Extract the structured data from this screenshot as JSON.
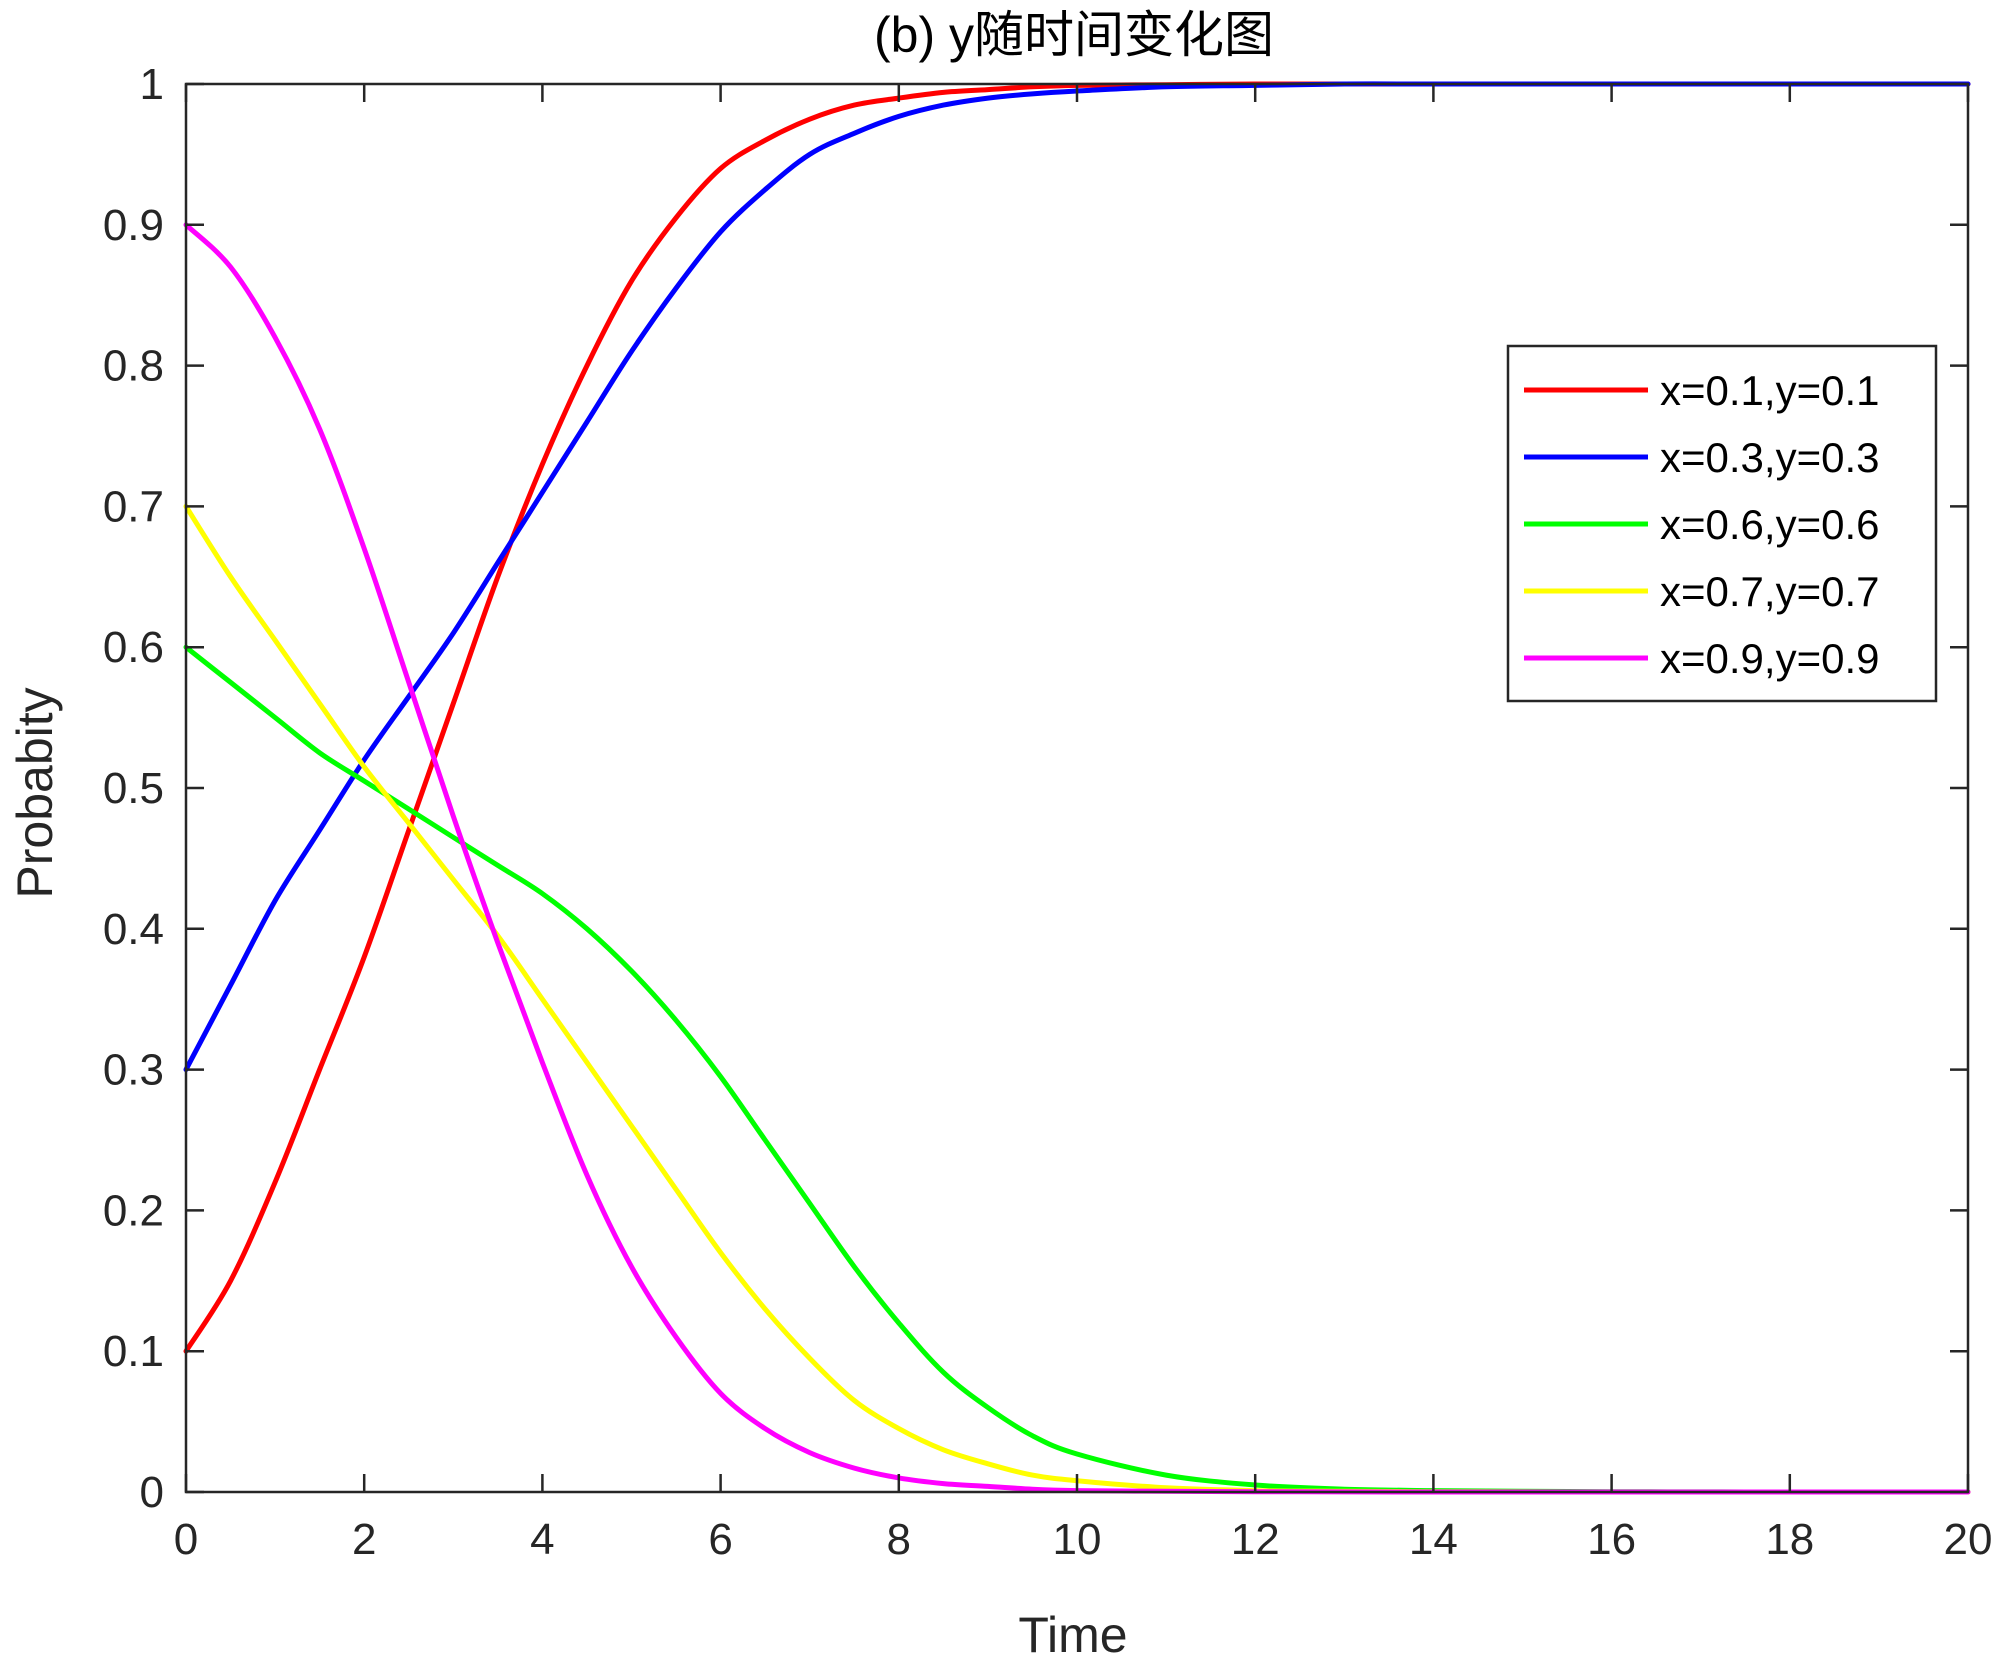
{
  "chart_data": {
    "type": "line",
    "title": "(b) y随时间变化图",
    "xlabel": "Time",
    "ylabel": "Probabity",
    "xlim": [
      0,
      20
    ],
    "ylim": [
      0,
      1
    ],
    "xticks": [
      0,
      2,
      4,
      6,
      8,
      10,
      12,
      14,
      16,
      18,
      20
    ],
    "xtick_labels": [
      "0",
      "2",
      "4",
      "6",
      "8",
      "10",
      "12",
      "14",
      "16",
      "18",
      "20"
    ],
    "yticks": [
      0,
      0.1,
      0.2,
      0.3,
      0.4,
      0.5,
      0.6,
      0.7,
      0.8,
      0.9,
      1
    ],
    "ytick_labels": [
      "0",
      "0.1",
      "0.2",
      "0.3",
      "0.4",
      "0.5",
      "0.6",
      "0.7",
      "0.8",
      "0.9",
      "1"
    ],
    "grid": false,
    "legend_position": "top-right",
    "x": [
      0,
      0.5,
      1,
      1.5,
      2,
      2.5,
      3,
      3.5,
      4,
      4.5,
      5,
      5.5,
      6,
      6.5,
      7,
      7.5,
      8,
      8.5,
      9,
      9.5,
      10,
      11,
      12,
      13,
      14,
      15,
      16,
      17,
      18,
      19,
      20
    ],
    "series": [
      {
        "name": "x=0.1,y=0.1",
        "color": "#ff0000",
        "values": [
          0.1,
          0.15,
          0.22,
          0.3,
          0.38,
          0.47,
          0.56,
          0.65,
          0.73,
          0.8,
          0.86,
          0.905,
          0.94,
          0.96,
          0.975,
          0.985,
          0.99,
          0.994,
          0.996,
          0.998,
          0.999,
          0.9995,
          1.0,
          1.0,
          1.0,
          1.0,
          1.0,
          1.0,
          1.0,
          1.0,
          1.0
        ]
      },
      {
        "name": "x=0.3,y=0.3",
        "color": "#0000ff",
        "values": [
          0.3,
          0.36,
          0.42,
          0.47,
          0.52,
          0.565,
          0.61,
          0.66,
          0.71,
          0.76,
          0.81,
          0.855,
          0.895,
          0.925,
          0.95,
          0.965,
          0.977,
          0.985,
          0.99,
          0.993,
          0.995,
          0.998,
          0.999,
          1.0,
          1.0,
          1.0,
          1.0,
          1.0,
          1.0,
          1.0,
          1.0
        ]
      },
      {
        "name": "x=0.6,y=0.6",
        "color": "#00ff00",
        "values": [
          0.6,
          0.575,
          0.55,
          0.525,
          0.505,
          0.485,
          0.465,
          0.445,
          0.425,
          0.4,
          0.37,
          0.335,
          0.295,
          0.25,
          0.205,
          0.16,
          0.12,
          0.085,
          0.06,
          0.04,
          0.027,
          0.012,
          0.005,
          0.002,
          0.001,
          0.0005,
          0.0002,
          0.0001,
          0.0,
          0.0,
          0.0
        ]
      },
      {
        "name": "x=0.7,y=0.7",
        "color": "#ffff00",
        "values": [
          0.7,
          0.65,
          0.605,
          0.56,
          0.515,
          0.475,
          0.435,
          0.395,
          0.35,
          0.305,
          0.26,
          0.215,
          0.17,
          0.13,
          0.095,
          0.065,
          0.045,
          0.03,
          0.02,
          0.012,
          0.008,
          0.003,
          0.001,
          0.0005,
          0.0002,
          0.0001,
          0.0,
          0.0,
          0.0,
          0.0,
          0.0
        ]
      },
      {
        "name": "x=0.9,y=0.9",
        "color": "#ff00ff",
        "values": [
          0.9,
          0.87,
          0.82,
          0.755,
          0.67,
          0.575,
          0.48,
          0.39,
          0.305,
          0.225,
          0.16,
          0.11,
          0.07,
          0.045,
          0.028,
          0.017,
          0.01,
          0.006,
          0.004,
          0.002,
          0.001,
          0.0005,
          0.0002,
          0.0001,
          0.0,
          0.0,
          0.0,
          0.0,
          0.0,
          0.0,
          0.0
        ]
      }
    ]
  }
}
